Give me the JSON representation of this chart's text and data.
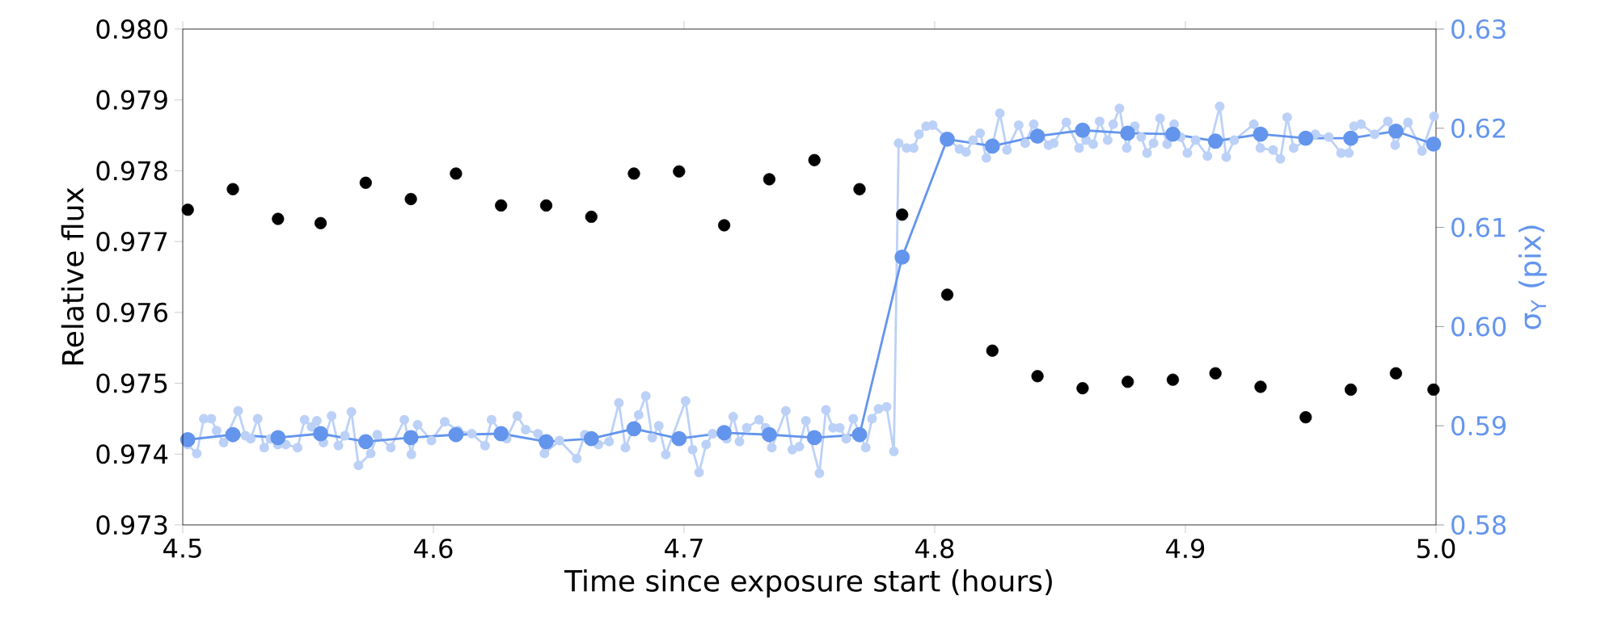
{
  "chart_data": {
    "type": "scatter",
    "xlabel": "Time since exposure start (hours)",
    "ylabel": "Relative flux",
    "y2label": "σ$_{Y}$ (pix)",
    "xlim": [
      4.5,
      5.0
    ],
    "xticks": [
      {
        "value": 4.5,
        "label": "4.5"
      },
      {
        "value": 4.6,
        "label": "4.6"
      },
      {
        "value": 4.7,
        "label": "4.7"
      },
      {
        "value": 4.8,
        "label": "4.8"
      },
      {
        "value": 4.9,
        "label": "4.9"
      },
      {
        "value": 5.0,
        "label": "5.0"
      }
    ],
    "ylim": [
      0.973,
      0.98
    ],
    "yticks": [
      {
        "value": 0.973,
        "label": "0.973"
      },
      {
        "value": 0.974,
        "label": "0.974"
      },
      {
        "value": 0.975,
        "label": "0.975"
      },
      {
        "value": 0.976,
        "label": "0.976"
      },
      {
        "value": 0.977,
        "label": "0.977"
      },
      {
        "value": 0.978,
        "label": "0.978"
      },
      {
        "value": 0.979,
        "label": "0.979"
      },
      {
        "value": 0.98,
        "label": "0.980"
      }
    ],
    "y2lim": [
      0.58,
      0.63
    ],
    "y2ticks": [
      {
        "value": 0.58,
        "label": "0.58"
      },
      {
        "value": 0.59,
        "label": "0.59"
      },
      {
        "value": 0.6,
        "label": "0.60"
      },
      {
        "value": 0.61,
        "label": "0.61"
      },
      {
        "value": 0.62,
        "label": "0.62"
      },
      {
        "value": 0.63,
        "label": "0.63"
      }
    ],
    "series": [
      {
        "type": "line",
        "axis": "y2",
        "color": "#bcd1f7",
        "marker": "circle",
        "x": [
          4.5019,
          4.5056,
          4.5084,
          4.5114,
          4.5135,
          4.5163,
          4.5221,
          4.525,
          4.5271,
          4.5299,
          4.5325,
          4.535,
          4.5379,
          4.5411,
          4.5458,
          4.5486,
          4.5514,
          4.5535,
          4.5561,
          4.5594,
          4.5621,
          4.5647,
          4.5673,
          4.5701,
          4.575,
          4.5776,
          4.583,
          4.5884,
          4.5912,
          4.5937,
          4.5992,
          4.6045,
          4.6099,
          4.6153,
          4.6206,
          4.6232,
          4.6292,
          4.6335,
          4.6368,
          4.6417,
          4.6443,
          4.6503,
          4.6572,
          4.6604,
          4.6658,
          4.6701,
          4.674,
          4.6766,
          4.6819,
          4.6847,
          4.6873,
          4.6899,
          4.6927,
          4.7006,
          4.7034,
          4.706,
          4.7088,
          4.7114,
          4.717,
          4.7196,
          4.7221,
          4.725,
          4.7299,
          4.7325,
          4.735,
          4.7406,
          4.7432,
          4.746,
          4.7486,
          4.754,
          4.7566,
          4.7594,
          4.7621,
          4.7647,
          4.7675,
          4.7725,
          4.775,
          4.7776,
          4.7808,
          4.7837,
          4.7856,
          4.7888,
          4.7916,
          4.7937,
          4.7966,
          4.7992,
          4.8099,
          4.8125,
          4.8153,
          4.8181,
          4.8206,
          4.8232,
          4.826,
          4.8288,
          4.8335,
          4.8361,
          4.8395,
          4.8454,
          4.8475,
          4.8525,
          4.8576,
          4.8604,
          4.8632,
          4.8658,
          4.869,
          4.8712,
          4.8737,
          4.8766,
          4.8798,
          4.8824,
          4.8847,
          4.8873,
          4.8899,
          4.8927,
          4.8955,
          4.8981,
          4.9008,
          4.9041,
          4.9088,
          4.9137,
          4.9163,
          4.9195,
          4.9273,
          4.9299,
          4.935,
          4.9379,
          4.9406,
          4.9432,
          4.9518,
          4.9572,
          4.9621,
          4.9652,
          4.9673,
          4.9701,
          4.9755,
          4.9808,
          4.9837,
          4.9888,
          4.9944,
          4.9992
        ],
        "values": [
          0.5881,
          0.5872,
          0.5907,
          0.5907,
          0.5895,
          0.5883,
          0.5915,
          0.589,
          0.5887,
          0.5907,
          0.5878,
          0.5887,
          0.5881,
          0.5881,
          0.5878,
          0.5906,
          0.5899,
          0.5905,
          0.5883,
          0.591,
          0.588,
          0.589,
          0.5914,
          0.586,
          0.5872,
          0.5891,
          0.5878,
          0.5906,
          0.5871,
          0.5901,
          0.5885,
          0.5904,
          0.5895,
          0.5892,
          0.588,
          0.5906,
          0.5887,
          0.591,
          0.5896,
          0.5892,
          0.5872,
          0.5885,
          0.5867,
          0.5891,
          0.5881,
          0.5884,
          0.5923,
          0.5878,
          0.5911,
          0.593,
          0.5888,
          0.59,
          0.5871,
          0.5925,
          0.5876,
          0.5853,
          0.5881,
          0.5892,
          0.5887,
          0.5909,
          0.5884,
          0.5898,
          0.5906,
          0.5898,
          0.5878,
          0.5915,
          0.5876,
          0.5879,
          0.5905,
          0.5852,
          0.5916,
          0.5898,
          0.5898,
          0.5887,
          0.5907,
          0.5878,
          0.5907,
          0.5917,
          0.5919,
          0.5874,
          0.6185,
          0.618,
          0.618,
          0.6194,
          0.6202,
          0.6203,
          0.6179,
          0.6176,
          0.6188,
          0.6195,
          0.617,
          0.6185,
          0.6215,
          0.6178,
          0.6203,
          0.6185,
          0.6204,
          0.6183,
          0.6185,
          0.6206,
          0.618,
          0.6188,
          0.6184,
          0.6207,
          0.6188,
          0.6204,
          0.622,
          0.618,
          0.6202,
          0.6191,
          0.6175,
          0.6185,
          0.621,
          0.6184,
          0.6204,
          0.6191,
          0.6175,
          0.6188,
          0.6172,
          0.6222,
          0.6171,
          0.6188,
          0.6204,
          0.618,
          0.6178,
          0.6169,
          0.6211,
          0.618,
          0.6194,
          0.6191,
          0.6175,
          0.6175,
          0.6202,
          0.6204,
          0.6194,
          0.6207,
          0.6183,
          0.6206,
          0.6177,
          0.6212
        ]
      },
      {
        "type": "line",
        "axis": "y2",
        "color": "#6495ed",
        "marker": "circle",
        "x": [
          4.502,
          4.52,
          4.538,
          4.555,
          4.573,
          4.591,
          4.609,
          4.627,
          4.645,
          4.663,
          4.68,
          4.698,
          4.716,
          4.734,
          4.752,
          4.77,
          4.787,
          4.805,
          4.823,
          4.841,
          4.859,
          4.877,
          4.895,
          4.912,
          4.93,
          4.948,
          4.966,
          4.984,
          4.999
        ],
        "values": [
          0.5886,
          0.5891,
          0.5888,
          0.5892,
          0.5884,
          0.5888,
          0.5891,
          0.5892,
          0.5884,
          0.5887,
          0.5897,
          0.5887,
          0.5893,
          0.5891,
          0.5888,
          0.5891,
          0.607,
          0.6189,
          0.6182,
          0.6192,
          0.6198,
          0.6195,
          0.6194,
          0.6187,
          0.6194,
          0.619,
          0.619,
          0.6197,
          0.6184
        ]
      },
      {
        "color": "#000000",
        "marker": "circle",
        "x": [
          4.502,
          4.52,
          4.538,
          4.555,
          4.573,
          4.591,
          4.609,
          4.627,
          4.645,
          4.663,
          4.68,
          4.698,
          4.716,
          4.734,
          4.752,
          4.77,
          4.787,
          4.805,
          4.823,
          4.841,
          4.859,
          4.877,
          4.895,
          4.912,
          4.93,
          4.948,
          4.966,
          4.984,
          4.999
        ],
        "values": [
          0.97745,
          0.97774,
          0.97732,
          0.97726,
          0.97783,
          0.9776,
          0.97796,
          0.97751,
          0.97751,
          0.97735,
          0.97796,
          0.97799,
          0.97723,
          0.97788,
          0.97815,
          0.97774,
          0.97738,
          0.97625,
          0.97546,
          0.9751,
          0.97493,
          0.97502,
          0.97505,
          0.97514,
          0.97495,
          0.97452,
          0.97491,
          0.97514,
          0.97491
        ]
      }
    ]
  }
}
